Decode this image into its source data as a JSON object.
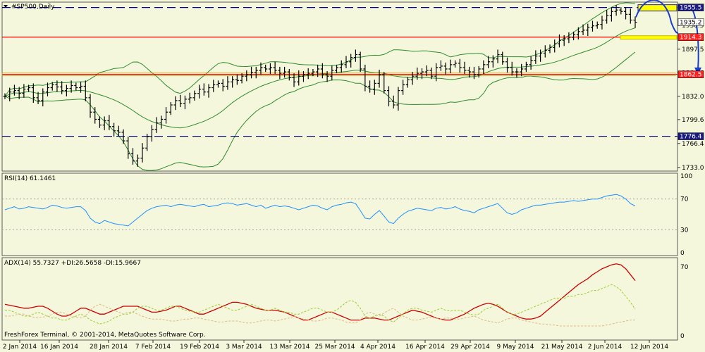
{
  "chart_data": [
    {
      "type": "ohlc",
      "title": "#SP500,Daily",
      "x_dates": [
        "2 Jan 2014",
        "16 Jan 2014",
        "28 Jan 2014",
        "7 Feb 2014",
        "19 Feb 2014",
        "3 Mar 2014",
        "13 Mar 2014",
        "25 Mar 2014",
        "4 Apr 2014",
        "16 Apr 2014",
        "29 Apr 2014",
        "9 May 2014",
        "21 May 2014",
        "2 Jun 2014",
        "12 Jun 2014"
      ],
      "y_ticks": [
        1733.0,
        1766.4,
        1799.6,
        1832.0,
        1864.6,
        1897.5,
        1930.5
      ],
      "ylim": [
        1728,
        1963
      ],
      "price_labels": [
        {
          "text": "1935.2",
          "value": 1935.2
        },
        {
          "text": "1914.3",
          "value": 1914.3
        },
        {
          "text": "1862.5",
          "value": 1862.5
        },
        {
          "text": "1776.4",
          "value": 1776.4
        },
        {
          "text": "1955.5",
          "value": 1955.5
        }
      ],
      "horizontal_levels": [
        {
          "value": 1955.5,
          "style": "dashed",
          "color": "#00008b"
        },
        {
          "value": 1914.3,
          "style": "solid",
          "color": "#ff0000"
        },
        {
          "value": 1862.5,
          "style": "solid",
          "color": "#ff0000"
        },
        {
          "value": 1776.4,
          "style": "dashed",
          "color": "#00008b"
        }
      ],
      "closes": [
        1832,
        1838,
        1840,
        1836,
        1842,
        1844,
        1830,
        1826,
        1838,
        1844,
        1848,
        1845,
        1840,
        1843,
        1847,
        1844,
        1846,
        1830,
        1810,
        1800,
        1792,
        1798,
        1790,
        1784,
        1782,
        1770,
        1752,
        1742,
        1746,
        1760,
        1776,
        1786,
        1795,
        1800,
        1810,
        1820,
        1826,
        1822,
        1828,
        1830,
        1836,
        1842,
        1838,
        1844,
        1848,
        1850,
        1846,
        1852,
        1855,
        1854,
        1860,
        1862,
        1865,
        1868,
        1872,
        1870,
        1872,
        1868,
        1864,
        1866,
        1858,
        1852,
        1860,
        1862,
        1864,
        1866,
        1870,
        1862,
        1860,
        1868,
        1872,
        1876,
        1880,
        1886,
        1890,
        1870,
        1846,
        1842,
        1850,
        1862,
        1840,
        1825,
        1820,
        1840,
        1848,
        1855,
        1860,
        1864,
        1866,
        1868,
        1860,
        1872,
        1874,
        1870,
        1876,
        1878,
        1872,
        1868,
        1866,
        1862,
        1870,
        1876,
        1880,
        1884,
        1890,
        1880,
        1872,
        1866,
        1866,
        1870,
        1876,
        1882,
        1888,
        1892,
        1896,
        1900,
        1905,
        1910,
        1912,
        1914,
        1918,
        1922,
        1924,
        1928,
        1930,
        1932,
        1938,
        1944,
        1950,
        1952,
        1950,
        1946,
        1938,
        1935
      ],
      "bands": {
        "upper": "1960 at peak",
        "middle": "1926",
        "lower": "1867"
      },
      "annotations": [
        "yellow box near 1955.5",
        "yellow box near 1914.3",
        "yellow box near 1862.5",
        "blue forecast arrows"
      ]
    },
    {
      "type": "line",
      "title": "RSI(14) 61.1461",
      "yticks": [
        100,
        70,
        30,
        0
      ],
      "levels": [
        70,
        30
      ],
      "values": [
        56,
        58,
        60,
        57,
        58,
        60,
        59,
        58,
        57,
        59,
        62,
        61,
        59,
        58,
        59,
        60,
        60,
        55,
        45,
        40,
        38,
        42,
        40,
        38,
        37,
        36,
        35,
        40,
        45,
        50,
        55,
        58,
        60,
        61,
        62,
        60,
        62,
        63,
        62,
        61,
        60,
        62,
        63,
        60,
        61,
        62,
        64,
        65,
        64,
        62,
        63,
        64,
        62,
        60,
        62,
        58,
        60,
        62,
        60,
        61,
        60,
        58,
        56,
        58,
        60,
        62,
        61,
        58,
        56,
        60,
        62,
        63,
        65,
        66,
        64,
        55,
        45,
        44,
        50,
        55,
        48,
        40,
        38,
        45,
        50,
        54,
        56,
        58,
        57,
        56,
        55,
        58,
        59,
        57,
        58,
        60,
        57,
        55,
        54,
        52,
        56,
        58,
        60,
        62,
        64,
        58,
        52,
        50,
        52,
        56,
        58,
        60,
        62,
        62,
        63,
        64,
        65,
        66,
        66,
        67,
        68,
        67,
        68,
        69,
        70,
        70,
        72,
        74,
        75,
        76,
        74,
        70,
        64,
        61
      ],
      "color": "#1e90ff"
    },
    {
      "type": "line",
      "title": "ADX(14) 55.7327 +DI:26.5658 -DI:15.9667",
      "yticks": [
        70,
        0
      ],
      "series": [
        {
          "name": "ADX",
          "color": "#cc0000",
          "values": [
            32,
            31,
            30,
            29,
            28,
            28,
            29,
            30,
            30,
            28,
            25,
            22,
            20,
            20,
            22,
            25,
            28,
            28,
            26,
            24,
            22,
            22,
            24,
            26,
            28,
            30,
            30,
            30,
            30,
            28,
            26,
            24,
            24,
            25,
            26,
            28,
            30,
            30,
            28,
            26,
            24,
            22,
            22,
            24,
            26,
            28,
            30,
            32,
            34,
            34,
            33,
            32,
            30,
            28,
            27,
            26,
            26,
            26,
            25,
            24,
            22,
            20,
            18,
            16,
            16,
            18,
            20,
            22,
            24,
            24,
            22,
            20,
            18,
            16,
            16,
            16,
            18,
            18,
            18,
            17,
            16,
            16,
            18,
            20,
            22,
            24,
            26,
            25,
            24,
            22,
            20,
            18,
            17,
            16,
            16,
            18,
            20,
            22,
            25,
            28,
            30,
            32,
            33,
            32,
            30,
            27,
            24,
            22,
            20,
            18,
            17,
            17,
            18,
            20,
            24,
            28,
            32,
            36,
            40,
            44,
            48,
            52,
            55,
            58,
            62,
            65,
            68,
            70,
            72,
            73,
            72,
            68,
            62,
            56
          ]
        },
        {
          "name": "+DI",
          "color": "#9acd32",
          "values": [
            26,
            26,
            24,
            22,
            20,
            20,
            22,
            24,
            22,
            20,
            18,
            18,
            16,
            16,
            18,
            20,
            22,
            20,
            16,
            14,
            12,
            13,
            15,
            18,
            20,
            22,
            22,
            24,
            28,
            30,
            30,
            28,
            26,
            26,
            28,
            30,
            30,
            28,
            26,
            25,
            24,
            24,
            26,
            28,
            30,
            32,
            30,
            28,
            26,
            26,
            28,
            30,
            32,
            30,
            28,
            26,
            26,
            28,
            26,
            24,
            24,
            22,
            22,
            24,
            26,
            28,
            28,
            26,
            24,
            24,
            26,
            30,
            34,
            36,
            34,
            28,
            20,
            18,
            20,
            22,
            20,
            16,
            14,
            18,
            22,
            26,
            28,
            28,
            26,
            25,
            24,
            26,
            28,
            26,
            25,
            26,
            26,
            24,
            22,
            21,
            22,
            26,
            28,
            30,
            32,
            28,
            24,
            22,
            22,
            24,
            26,
            28,
            30,
            32,
            34,
            36,
            38,
            38,
            38,
            40,
            40,
            42,
            42,
            44,
            46,
            46,
            48,
            50,
            52,
            50,
            46,
            40,
            34,
            27
          ]
        },
        {
          "name": "-DI",
          "color": "#deb887",
          "values": [
            20,
            20,
            21,
            22,
            22,
            20,
            19,
            18,
            19,
            20,
            22,
            24,
            24,
            22,
            20,
            19,
            18,
            20,
            26,
            30,
            32,
            30,
            28,
            26,
            24,
            22,
            24,
            24,
            22,
            20,
            18,
            17,
            17,
            17,
            16,
            15,
            15,
            16,
            17,
            17,
            18,
            18,
            17,
            16,
            15,
            14,
            14,
            15,
            15,
            15,
            14,
            13,
            13,
            14,
            15,
            16,
            16,
            15,
            16,
            17,
            18,
            20,
            18,
            17,
            16,
            15,
            15,
            16,
            18,
            18,
            17,
            16,
            14,
            13,
            13,
            16,
            22,
            24,
            22,
            20,
            23,
            26,
            28,
            24,
            20,
            18,
            16,
            16,
            17,
            18,
            19,
            18,
            17,
            18,
            18,
            17,
            17,
            18,
            19,
            20,
            18,
            16,
            15,
            14,
            13,
            15,
            17,
            18,
            18,
            16,
            15,
            14,
            13,
            12,
            12,
            11,
            11,
            10,
            10,
            10,
            10,
            10,
            10,
            10,
            10,
            10,
            10,
            11,
            12,
            13,
            14,
            15,
            16,
            16
          ]
        }
      ]
    }
  ],
  "footer": {
    "copyright": "FreshForex Terminal, © 2001-2014, MetaQuotes Software Corp."
  }
}
